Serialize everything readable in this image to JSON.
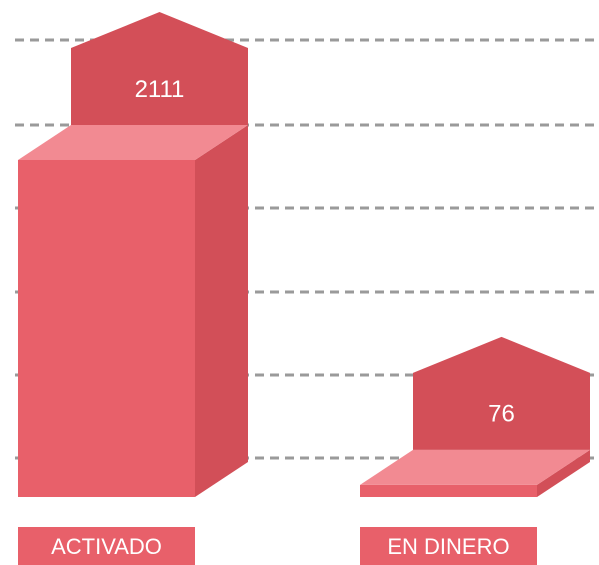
{
  "chart_data": {
    "type": "bar3d",
    "categories": [
      "ACTIVADO",
      "EN DINERO"
    ],
    "values": [
      2111,
      76
    ],
    "colors": {
      "front": "#e8606a",
      "top": "#f28a92",
      "side": "#d24f58",
      "tag": "#d34f58"
    }
  }
}
